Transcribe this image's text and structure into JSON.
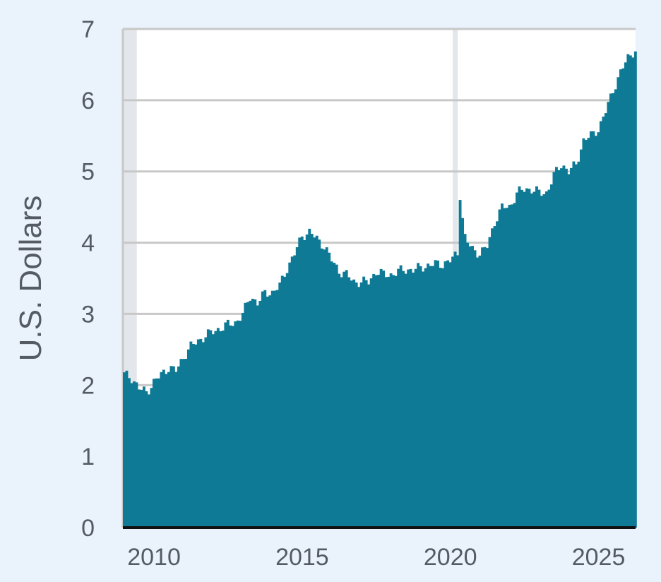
{
  "chart_data": {
    "type": "bar",
    "title": "",
    "xlabel": "",
    "ylabel": "U.S. Dollars",
    "xlim": [
      2008.95,
      2026.25
    ],
    "ylim": [
      0,
      7
    ],
    "x_ticks": [
      "2010",
      "2015",
      "2020",
      "2025"
    ],
    "y_ticks": [
      "0",
      "1",
      "2",
      "3",
      "4",
      "5",
      "6",
      "7"
    ],
    "grid": true,
    "recession_bands": [
      [
        2008.95,
        2009.42
      ],
      [
        2020.08,
        2020.25
      ]
    ],
    "series": [
      {
        "color": "#0f7a95",
        "points": [
          [
            2009.0,
            2.15
          ],
          [
            2009.25,
            2.1
          ],
          [
            2009.5,
            1.95
          ],
          [
            2009.75,
            1.9
          ],
          [
            2010.0,
            2.05
          ],
          [
            2010.25,
            2.15
          ],
          [
            2010.5,
            2.25
          ],
          [
            2010.75,
            2.2
          ],
          [
            2011.0,
            2.4
          ],
          [
            2011.25,
            2.55
          ],
          [
            2011.5,
            2.62
          ],
          [
            2011.75,
            2.7
          ],
          [
            2012.0,
            2.75
          ],
          [
            2012.25,
            2.8
          ],
          [
            2012.5,
            2.85
          ],
          [
            2012.75,
            2.88
          ],
          [
            2013.0,
            3.0
          ],
          [
            2013.25,
            3.25
          ],
          [
            2013.5,
            3.15
          ],
          [
            2013.75,
            3.3
          ],
          [
            2014.0,
            3.3
          ],
          [
            2014.25,
            3.4
          ],
          [
            2014.5,
            3.65
          ],
          [
            2014.75,
            3.85
          ],
          [
            2015.0,
            4.1
          ],
          [
            2015.25,
            4.15
          ],
          [
            2015.5,
            4.05
          ],
          [
            2015.75,
            3.95
          ],
          [
            2016.0,
            3.75
          ],
          [
            2016.25,
            3.6
          ],
          [
            2016.5,
            3.55
          ],
          [
            2016.75,
            3.45
          ],
          [
            2017.0,
            3.45
          ],
          [
            2017.25,
            3.45
          ],
          [
            2017.5,
            3.6
          ],
          [
            2017.75,
            3.55
          ],
          [
            2018.0,
            3.55
          ],
          [
            2018.25,
            3.6
          ],
          [
            2018.5,
            3.62
          ],
          [
            2018.75,
            3.62
          ],
          [
            2019.0,
            3.65
          ],
          [
            2019.25,
            3.68
          ],
          [
            2019.5,
            3.7
          ],
          [
            2019.75,
            3.7
          ],
          [
            2020.0,
            3.75
          ],
          [
            2020.25,
            3.85
          ],
          [
            2020.33,
            4.6
          ],
          [
            2020.5,
            4.05
          ],
          [
            2020.75,
            3.9
          ],
          [
            2021.0,
            3.85
          ],
          [
            2021.25,
            3.95
          ],
          [
            2021.5,
            4.3
          ],
          [
            2021.75,
            4.5
          ],
          [
            2022.0,
            4.5
          ],
          [
            2022.25,
            4.7
          ],
          [
            2022.5,
            4.75
          ],
          [
            2022.75,
            4.75
          ],
          [
            2023.0,
            4.7
          ],
          [
            2023.25,
            4.7
          ],
          [
            2023.5,
            4.95
          ],
          [
            2023.75,
            5.1
          ],
          [
            2024.0,
            5.0
          ],
          [
            2024.25,
            5.1
          ],
          [
            2024.5,
            5.45
          ],
          [
            2024.75,
            5.5
          ],
          [
            2025.0,
            5.6
          ],
          [
            2025.25,
            5.85
          ],
          [
            2025.5,
            6.15
          ],
          [
            2025.75,
            6.4
          ],
          [
            2026.0,
            6.6
          ],
          [
            2026.2,
            6.7
          ]
        ]
      }
    ]
  }
}
